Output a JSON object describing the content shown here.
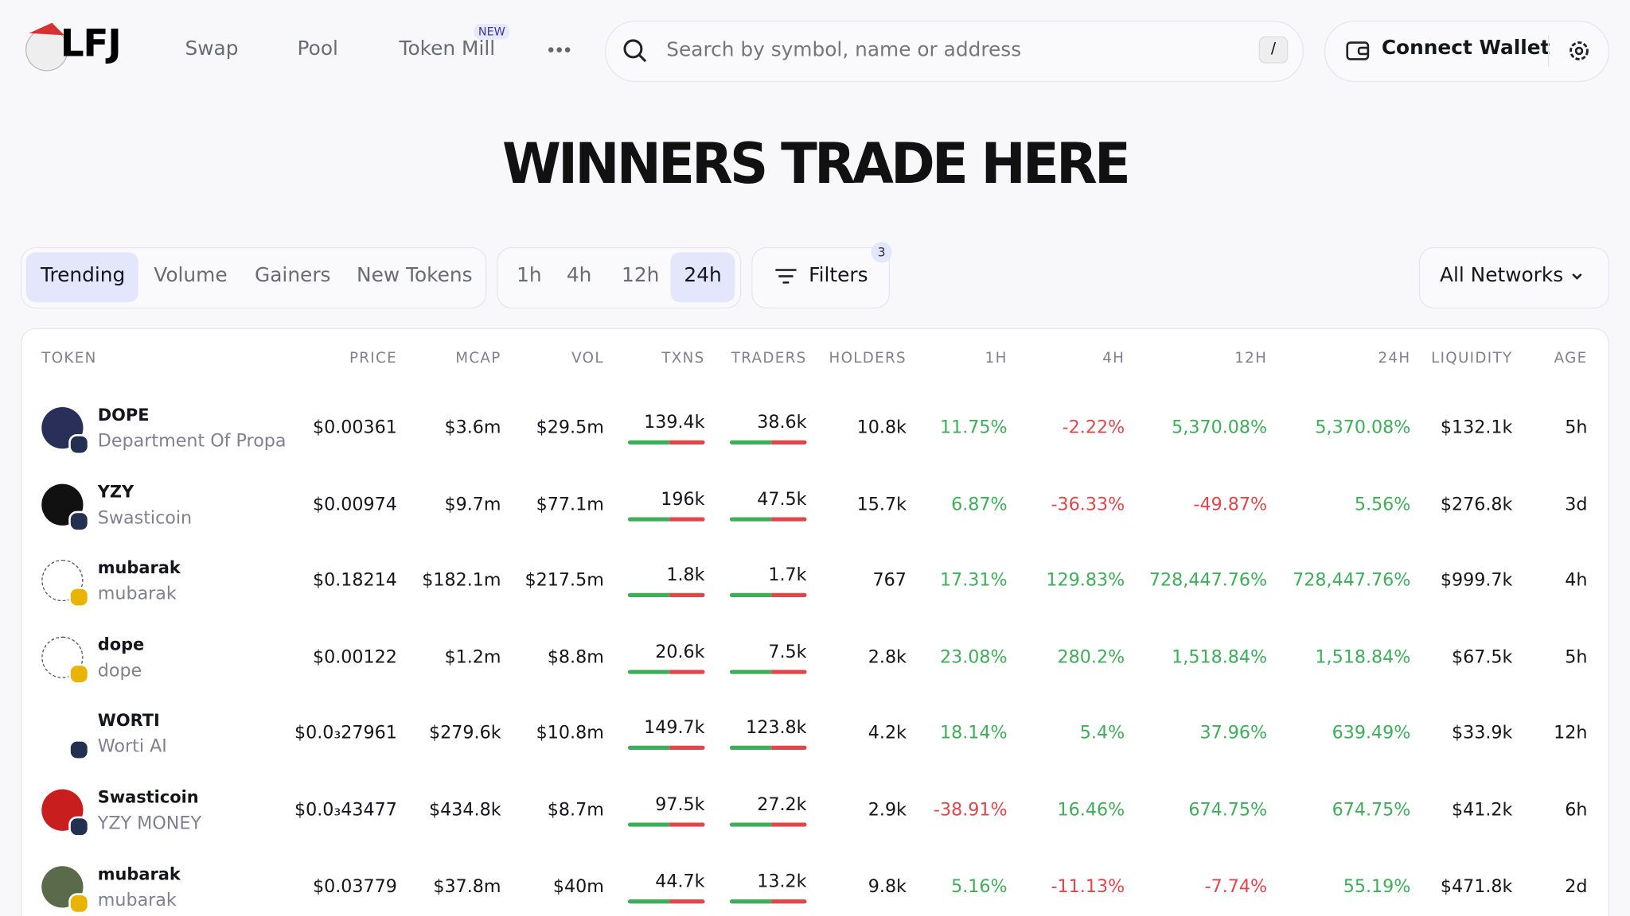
{
  "nav": {
    "logo": "LFJ",
    "links": [
      "Swap",
      "Pool",
      "Token Mill"
    ],
    "badge": "NEW"
  },
  "search": {
    "placeholder": "Search by symbol, name or address",
    "shortcut": "/"
  },
  "wallet": {
    "button": "Connect Wallet"
  },
  "hero": {
    "title": "WINNERS TRADE HERE"
  },
  "tabs": [
    "Trending",
    "Volume",
    "Gainers",
    "New Tokens"
  ],
  "periods": [
    "1h",
    "4h",
    "12h",
    "24h"
  ],
  "filters": {
    "label": "Filters",
    "count": "3"
  },
  "network": {
    "label": "All Networks"
  },
  "table": {
    "columns": [
      "TOKEN",
      "PRICE",
      "MCAP",
      "VOL",
      "TXNS",
      "TRADERS",
      "HOLDERS",
      "1H",
      "4H",
      "12H",
      "24H",
      "LIQUIDITY",
      "AGE"
    ],
    "rows": [
      [
        "DOPE",
        "Department Of Propa…",
        "$0.00361",
        "$3.6m",
        "$29.5m",
        "139.4k",
        "38.6k",
        "10.8k",
        "11.75%",
        "-2.22%",
        "5,370.08%",
        "5,370.08%",
        "$132.1k",
        "5h"
      ],
      [
        "YZY",
        "Swasticoin",
        "$0.00974",
        "$9.7m",
        "$77.1m",
        "196k",
        "47.5k",
        "15.7k",
        "6.87%",
        "-36.33%",
        "-49.87%",
        "5.56%",
        "$276.8k",
        "3d"
      ],
      [
        "mubarak",
        "mubarak",
        "$0.18214",
        "$182.1m",
        "$217.5m",
        "1.8k",
        "1.7k",
        "767",
        "17.31%",
        "129.83%",
        "728,447.76%",
        "728,447.76%",
        "$999.7k",
        "4h"
      ],
      [
        "dope",
        "dope",
        "$0.00122",
        "$1.2m",
        "$8.8m",
        "20.6k",
        "7.5k",
        "2.8k",
        "23.08%",
        "280.2%",
        "1,518.84%",
        "1,518.84%",
        "$67.5k",
        "5h"
      ],
      [
        "WORTI",
        "Worti AI",
        "$0.0₃27961",
        "$279.6k",
        "$10.8m",
        "149.7k",
        "123.8k",
        "4.2k",
        "18.14%",
        "5.4%",
        "37.96%",
        "639.49%",
        "$33.9k",
        "12h"
      ],
      [
        "Swasticoin",
        "YZY MONEY",
        "$0.0₃43477",
        "$434.8k",
        "$8.7m",
        "97.5k",
        "27.2k",
        "2.9k",
        "-38.91%",
        "16.46%",
        "674.75%",
        "674.75%",
        "$41.2k",
        "6h"
      ],
      [
        "mubarak",
        "mubarak",
        "$0.03779",
        "$37.8m",
        "$40m",
        "44.7k",
        "13.2k",
        "9.8k",
        "5.16%",
        "-11.13%",
        "-7.74%",
        "55.19%",
        "$471.8k",
        "2d"
      ]
    ]
  }
}
